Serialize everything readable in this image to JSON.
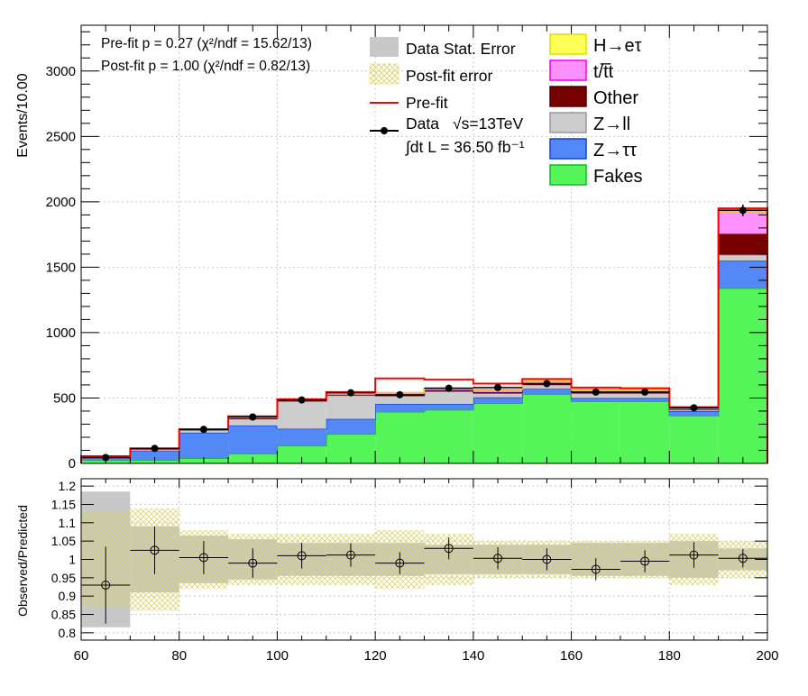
{
  "chart_data": [
    {
      "type": "bar",
      "ylabel": "Events/10.00",
      "xlim": [
        60,
        200
      ],
      "ylim": [
        0,
        3350
      ],
      "x_ticks": [
        "60",
        "80",
        "100",
        "120",
        "140",
        "160",
        "180",
        "200"
      ],
      "y_ticks": [
        "0",
        "500",
        "1000",
        "1500",
        "2000",
        "2500",
        "3000"
      ],
      "grid": true,
      "bin_edges": [
        60,
        70,
        80,
        90,
        100,
        110,
        120,
        130,
        140,
        150,
        160,
        170,
        180,
        190,
        200
      ],
      "stacked_series": [
        {
          "name": "Fakes",
          "key": "fakes",
          "color": "#55f55a",
          "values": [
            25,
            25,
            40,
            75,
            135,
            225,
            395,
            410,
            460,
            530,
            475,
            475,
            365,
            1340
          ]
        },
        {
          "name": "Z→ττ",
          "key": "ztt",
          "color": "#5588f7",
          "values": [
            20,
            70,
            195,
            215,
            130,
            115,
            60,
            45,
            45,
            40,
            25,
            25,
            35,
            210
          ]
        },
        {
          "name": "Z→ll",
          "key": "zll",
          "color": "#cccccc",
          "values": [
            3,
            12,
            20,
            50,
            210,
            180,
            60,
            95,
            30,
            30,
            35,
            35,
            10,
            45
          ]
        },
        {
          "name": "Other",
          "key": "other",
          "color": "#770000",
          "values": [
            1,
            3,
            3,
            5,
            5,
            5,
            10,
            10,
            10,
            10,
            10,
            10,
            5,
            160
          ]
        },
        {
          "name": "t/t̅t",
          "key": "ttbar",
          "color": "#ff90ff",
          "values": [
            1,
            3,
            5,
            8,
            10,
            15,
            15,
            15,
            20,
            20,
            20,
            20,
            10,
            175
          ]
        },
        {
          "name": "H→eτ",
          "key": "het",
          "color": "#ffff55",
          "values": [
            0,
            0,
            0,
            0,
            0,
            0,
            0,
            0,
            0,
            0,
            0,
            0,
            0,
            0
          ]
        }
      ],
      "prefit_values": [
        55,
        115,
        260,
        360,
        490,
        545,
        650,
        640,
        610,
        645,
        580,
        575,
        430,
        1950
      ],
      "data": {
        "x": [
          65,
          75,
          85,
          95,
          105,
          115,
          125,
          135,
          145,
          155,
          165,
          175,
          185,
          195
        ],
        "y": [
          45,
          115,
          260,
          355,
          485,
          540,
          525,
          575,
          580,
          610,
          545,
          545,
          425,
          1935
        ]
      },
      "legend": {
        "fit_info": [
          "Pre-fit   p = 0.27 (χ²/ndf = 15.62/13)",
          "Post-fit p = 1.00 (χ²/ndf = 0.82/13)"
        ],
        "data_stat_error": "Data Stat. Error",
        "postfit_error": "Post-fit error",
        "prefit": "Pre-fit",
        "data_label": "Data",
        "energy": "√s=13TeV",
        "lumi": "∫dt L = 36.50 fb⁻¹",
        "placement": "top"
      }
    },
    {
      "type": "scatter",
      "ylabel": "Observed/Predicted",
      "xlim": [
        60,
        200
      ],
      "ylim": [
        0.78,
        1.22
      ],
      "x_ticks": [
        "60",
        "80",
        "100",
        "120",
        "140",
        "160",
        "180",
        "200"
      ],
      "y_ticks": [
        "0.8",
        "0.85",
        "0.9",
        "0.95",
        "1",
        "1.05",
        "1.1",
        "1.15",
        "1.2"
      ],
      "grid": true,
      "x": [
        65,
        75,
        85,
        95,
        105,
        115,
        125,
        135,
        145,
        155,
        165,
        175,
        185,
        195
      ],
      "ratio": [
        0.93,
        1.025,
        1.005,
        0.99,
        1.01,
        1.012,
        0.99,
        1.03,
        1.003,
        1.0,
        0.973,
        0.995,
        1.012,
        1.003
      ],
      "ratio_err": [
        0.105,
        0.065,
        0.045,
        0.04,
        0.035,
        0.032,
        0.03,
        0.03,
        0.03,
        0.03,
        0.03,
        0.03,
        0.035,
        0.025
      ],
      "stat_band": [
        0.185,
        0.09,
        0.065,
        0.055,
        0.045,
        0.045,
        0.045,
        0.04,
        0.04,
        0.04,
        0.045,
        0.045,
        0.05,
        0.03
      ],
      "postfit_band": [
        0.13,
        0.14,
        0.08,
        0.07,
        0.07,
        0.07,
        0.08,
        0.07,
        0.05,
        0.05,
        0.05,
        0.05,
        0.07,
        0.05
      ]
    }
  ]
}
